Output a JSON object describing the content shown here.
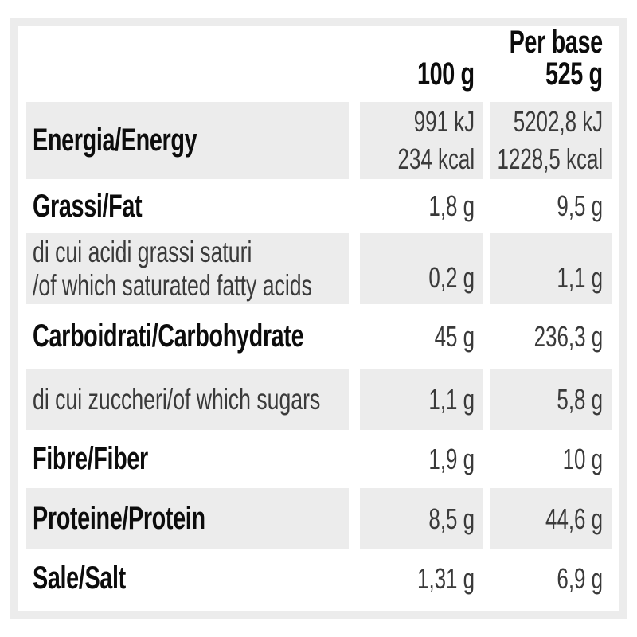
{
  "colors": {
    "shaded_cell": "#ececec",
    "frame_border": "#ececec",
    "label_text": "#0c0c0c",
    "value_text": "#3a3a3a"
  },
  "table": {
    "header": {
      "col_100g": "100 g",
      "col_base_line1": "Per base",
      "col_base_line2": "525 g"
    },
    "rows": {
      "energia": {
        "label": "Energia/Energy",
        "v100_line1": "991 kJ",
        "v100_line2": "234 kcal",
        "vbase_line1": "5202,8 kJ",
        "vbase_line2": "1228,5 kcal"
      },
      "grassi": {
        "label": "Grassi/Fat",
        "v100": "1,8 g",
        "vbase": "9,5 g"
      },
      "saturi": {
        "label_line1": "di cui acidi grassi saturi",
        "label_line2": "/of which saturated fatty acids",
        "v100": "0,2 g",
        "vbase": "1,1 g"
      },
      "carboidrati": {
        "label": "Carboidrati/Carbohydrate",
        "v100": "45 g",
        "vbase": "236,3 g"
      },
      "zuccheri": {
        "label": "di cui zuccheri/of which sugars",
        "v100": "1,1 g",
        "vbase": "5,8 g"
      },
      "fibre": {
        "label": "Fibre/Fiber",
        "v100": "1,9 g",
        "vbase": "10 g"
      },
      "proteine": {
        "label": "Proteine/Protein",
        "v100": "8,5 g",
        "vbase": "44,6 g"
      },
      "sale": {
        "label": "Sale/Salt",
        "v100": "1,31 g",
        "vbase": "6,9 g"
      }
    }
  }
}
